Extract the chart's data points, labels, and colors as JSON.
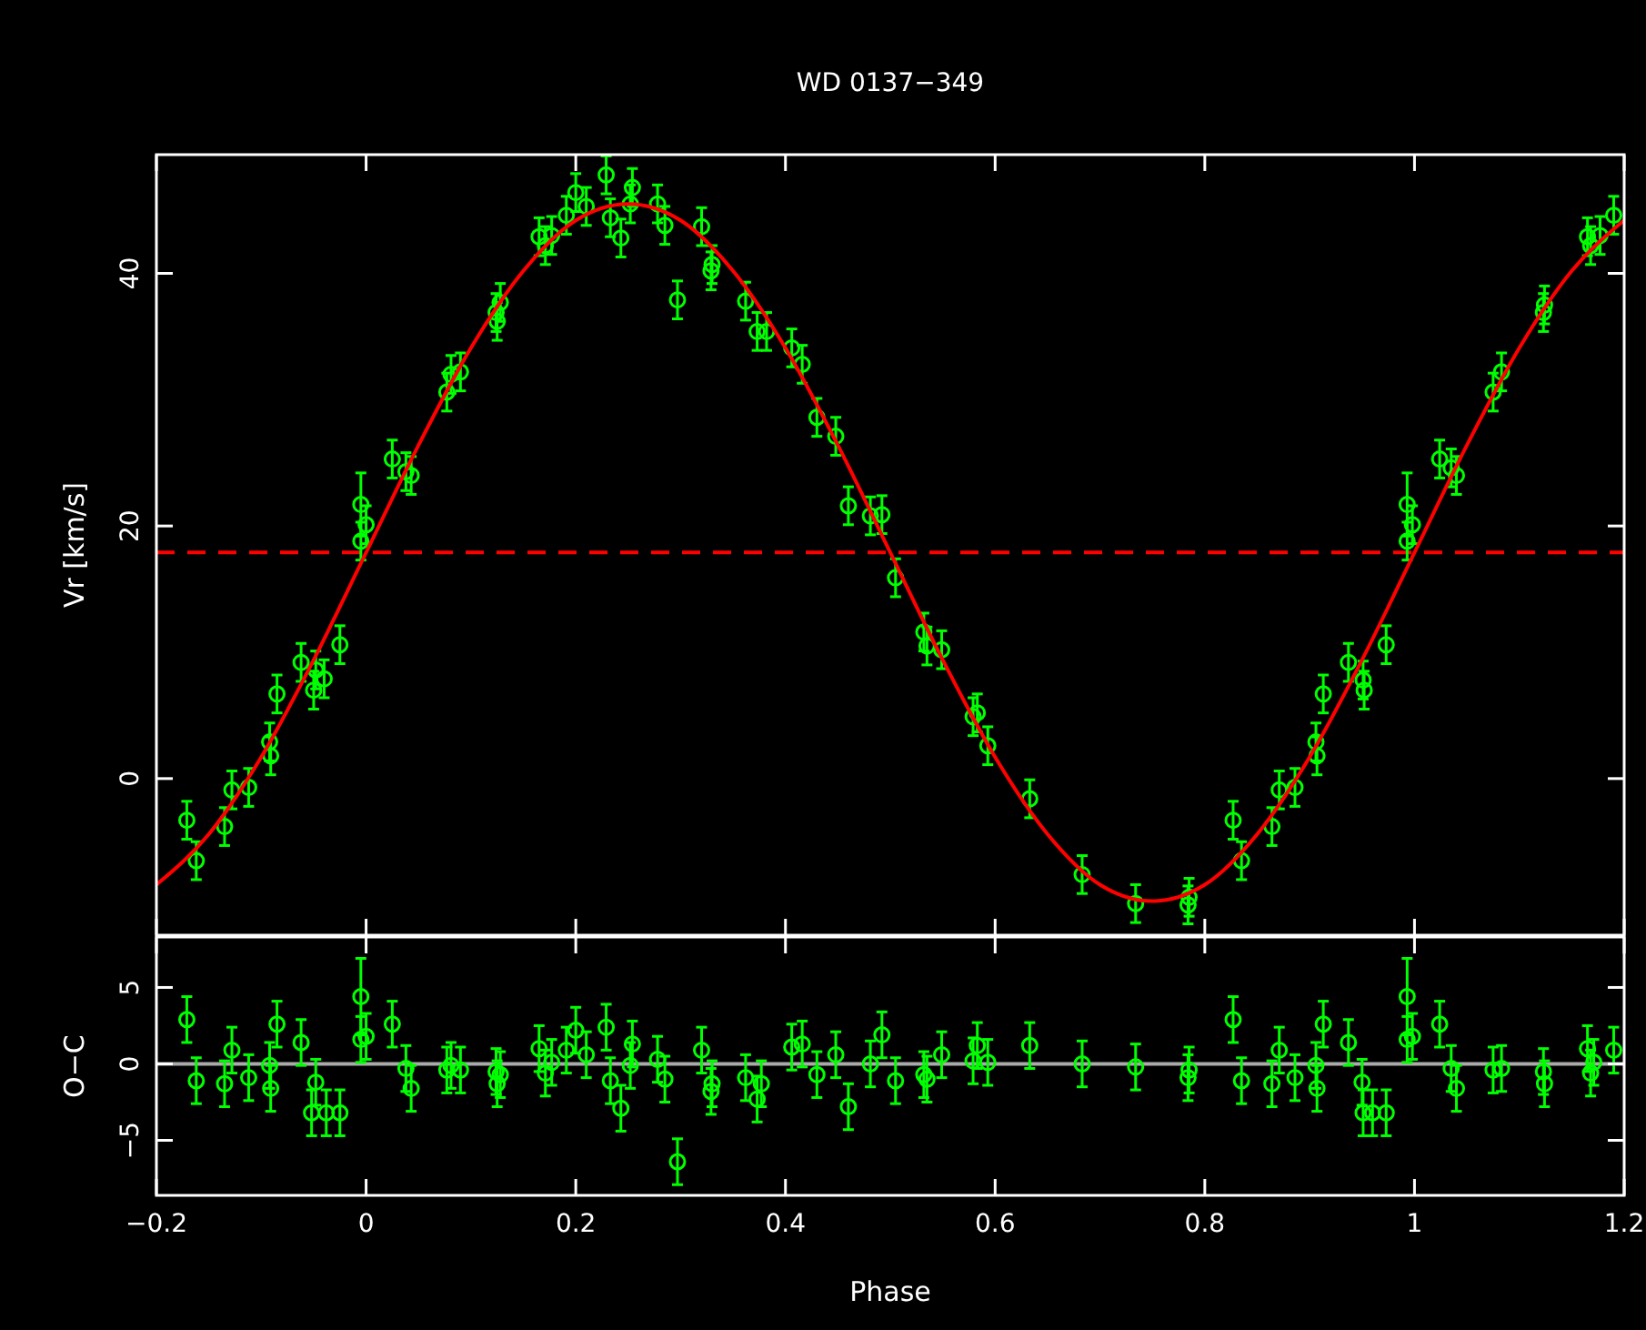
{
  "chart_data": [
    {
      "type": "scatter",
      "title": "WD 0137−349",
      "ylabel": "Vr [km/s]",
      "xlim": [
        -0.2,
        1.2
      ],
      "xticks": [
        -0.2,
        0,
        0.2,
        0.4,
        0.6,
        0.8,
        1,
        1.2
      ],
      "ylim": [
        -12.4,
        49.4
      ],
      "yticks": [
        0,
        20,
        40
      ],
      "tick_labels": "y",
      "marker": "circle",
      "grid": false,
      "ref_lines": [
        {
          "axis": "y",
          "value": 17.9,
          "color": "#ff0000",
          "line_style": "dashed"
        }
      ],
      "series": [
        {
          "type": "scatter",
          "color": "#00ff00",
          "x": [
            -0.171,
            -0.162,
            -0.135,
            -0.128,
            -0.112,
            -0.092,
            -0.091,
            -0.085,
            -0.062,
            -0.048,
            -0.05,
            -0.04,
            -0.025,
            -0.005,
            -0.005,
            0.0,
            0.025,
            0.038,
            0.043,
            0.077,
            0.081,
            0.09,
            0.124,
            0.128,
            0.125,
            0.165,
            0.171,
            0.177,
            0.191,
            0.2,
            0.21,
            0.229,
            0.233,
            0.243,
            0.252,
            0.254,
            0.278,
            0.285,
            0.297,
            0.32,
            0.329,
            0.33,
            0.362,
            0.373,
            0.382,
            0.406,
            0.416,
            0.43,
            0.448,
            0.46,
            0.481,
            0.492,
            0.505,
            0.532,
            0.535,
            0.549,
            0.579,
            0.583,
            0.593,
            0.633,
            0.683,
            0.734,
            0.785,
            0.784,
            0.827,
            0.835,
            0.864,
            0.871,
            0.886,
            0.906,
            0.907,
            0.913,
            0.937,
            0.951,
            0.952,
            0.973,
            0.993,
            0.993,
            0.998,
            1.024,
            1.035,
            1.04,
            1.075,
            1.083,
            1.123,
            1.124,
            1.165,
            1.168,
            1.177,
            1.19
          ],
          "values": [
            -3.3,
            -6.5,
            -3.8,
            -0.9,
            -0.7,
            2.9,
            1.8,
            6.7,
            9.2,
            8.6,
            7.0,
            7.9,
            10.6,
            18.8,
            21.7,
            20.1,
            25.3,
            24.3,
            24.0,
            30.6,
            32.0,
            32.2,
            36.9,
            37.7,
            36.2,
            42.9,
            42.2,
            43.0,
            44.6,
            46.4,
            45.3,
            47.8,
            44.4,
            42.8,
            45.5,
            46.8,
            45.5,
            43.8,
            37.9,
            43.7,
            40.2,
            40.7,
            37.8,
            35.4,
            35.4,
            34.1,
            32.8,
            28.6,
            27.1,
            21.6,
            20.8,
            20.9,
            15.9,
            11.6,
            10.5,
            10.2,
            4.9,
            5.2,
            2.6,
            -1.6,
            -7.6,
            -9.9,
            -9.4,
            -10.0,
            -3.3,
            -6.5,
            -3.8,
            -0.9,
            -0.7,
            2.9,
            1.8,
            6.7,
            9.2,
            7.8,
            7.0,
            10.6,
            18.8,
            21.7,
            20.1,
            25.3,
            24.6,
            24.0,
            30.6,
            32.2,
            36.9,
            37.5,
            42.9,
            42.2,
            43.0,
            44.6
          ],
          "errors": [
            1.5,
            1.5,
            1.5,
            1.5,
            1.5,
            1.5,
            1.5,
            1.5,
            1.5,
            1.5,
            1.5,
            1.5,
            1.5,
            1.5,
            2.5,
            1.5,
            1.5,
            1.5,
            1.5,
            1.5,
            1.5,
            1.5,
            1.5,
            1.5,
            1.5,
            1.5,
            1.5,
            1.5,
            1.5,
            1.5,
            1.5,
            1.5,
            1.5,
            1.5,
            1.5,
            1.5,
            1.5,
            1.5,
            1.5,
            1.5,
            1.5,
            1.5,
            1.5,
            1.5,
            1.5,
            1.5,
            1.5,
            1.5,
            1.5,
            1.5,
            1.5,
            1.5,
            1.5,
            1.5,
            1.5,
            1.5,
            1.5,
            1.5,
            1.5,
            1.5,
            1.5,
            1.5,
            1.5,
            1.5,
            1.5,
            1.5,
            1.5,
            1.5,
            1.5,
            1.5,
            1.5,
            1.5,
            1.5,
            1.5,
            1.5,
            1.5,
            1.5,
            2.5,
            1.5,
            1.5,
            1.5,
            1.5,
            1.5,
            1.5,
            1.5,
            1.5,
            1.5,
            1.5,
            1.5,
            1.5
          ]
        },
        {
          "type": "line",
          "color": "#ff0000",
          "marker": "none",
          "x": [
            -0.2,
            -0.15,
            -0.1,
            -0.05,
            0,
            0.05,
            0.1,
            0.15,
            0.2,
            0.25,
            0.3,
            0.35,
            0.4,
            0.45,
            0.5,
            0.55,
            0.6,
            0.65,
            0.7,
            0.75,
            0.8,
            0.85,
            0.9,
            0.95,
            1.0,
            1.05,
            1.1,
            1.15,
            1.2
          ],
          "values": [
            -8.4,
            -4.4,
            1.7,
            9.4,
            17.9,
            26.4,
            34.1,
            40.2,
            44.2,
            45.5,
            44.2,
            40.2,
            34.1,
            26.4,
            17.9,
            9.4,
            1.7,
            -4.4,
            -8.4,
            -9.7,
            -8.4,
            -4.4,
            1.7,
            9.4,
            17.9,
            26.4,
            34.1,
            40.2,
            44.2
          ]
        }
      ]
    },
    {
      "type": "scatter",
      "xlabel": "Phase",
      "ylabel": "O−C",
      "xlim": [
        -0.2,
        1.2
      ],
      "xticks": [
        {
          "value": -0.2,
          "label": "−0.2"
        },
        0,
        0.2,
        0.4,
        0.6,
        0.8,
        1,
        1.2
      ],
      "ylim": [
        -8.6,
        8.3
      ],
      "yticks": [
        {
          "value": -5,
          "label": "−5"
        },
        0,
        5
      ],
      "marker": "circle",
      "grid": false,
      "ref_lines": [
        {
          "axis": "y",
          "value": 0,
          "color": "#aaaaaa",
          "line_style": "solid"
        }
      ],
      "series": [
        {
          "type": "scatter",
          "color": "#00ff00",
          "x": [
            -0.171,
            -0.162,
            -0.135,
            -0.128,
            -0.112,
            -0.092,
            -0.091,
            -0.085,
            -0.062,
            -0.048,
            -0.052,
            -0.038,
            -0.025,
            -0.005,
            -0.005,
            0.0,
            0.025,
            0.038,
            0.043,
            0.077,
            0.081,
            0.09,
            0.124,
            0.128,
            0.125,
            0.165,
            0.171,
            0.177,
            0.191,
            0.2,
            0.21,
            0.229,
            0.233,
            0.243,
            0.252,
            0.254,
            0.278,
            0.285,
            0.297,
            0.32,
            0.329,
            0.33,
            0.362,
            0.373,
            0.377,
            0.406,
            0.416,
            0.43,
            0.448,
            0.46,
            0.481,
            0.492,
            0.505,
            0.532,
            0.535,
            0.549,
            0.579,
            0.583,
            0.593,
            0.633,
            0.683,
            0.734,
            0.785,
            0.784,
            0.827,
            0.835,
            0.864,
            0.871,
            0.886,
            0.906,
            0.907,
            0.913,
            0.937,
            0.95,
            0.951,
            0.96,
            0.973,
            0.993,
            0.993,
            0.998,
            1.024,
            1.035,
            1.04,
            1.075,
            1.083,
            1.123,
            1.124,
            1.165,
            1.168,
            1.171,
            1.19
          ],
          "values": [
            2.9,
            -1.1,
            -1.3,
            0.9,
            -0.9,
            -0.1,
            -1.6,
            2.6,
            1.4,
            -1.2,
            -3.2,
            -3.2,
            -3.2,
            4.4,
            1.6,
            1.8,
            2.6,
            -0.3,
            -1.6,
            -0.4,
            -0.1,
            -0.4,
            -0.5,
            -0.7,
            -1.3,
            1.0,
            -0.6,
            0.1,
            0.9,
            2.2,
            0.6,
            2.4,
            -1.1,
            -2.9,
            -0.1,
            1.3,
            0.3,
            -1.0,
            -6.4,
            0.9,
            -1.8,
            -1.3,
            -0.9,
            -2.3,
            -1.3,
            1.1,
            1.3,
            -0.7,
            0.6,
            -2.8,
            0.0,
            1.9,
            -1.1,
            -0.7,
            -1.0,
            0.6,
            0.2,
            1.2,
            0.1,
            1.2,
            0.0,
            -0.2,
            -0.4,
            -0.9,
            2.9,
            -1.1,
            -1.3,
            0.9,
            -0.9,
            -0.1,
            -1.6,
            2.6,
            1.4,
            -1.2,
            -3.2,
            -3.2,
            -3.2,
            4.4,
            1.6,
            1.8,
            2.6,
            -0.3,
            -1.6,
            -0.4,
            -0.3,
            -0.5,
            -1.3,
            1.0,
            -0.6,
            0.1,
            0.9
          ],
          "errors": [
            1.5,
            1.5,
            1.5,
            1.5,
            1.5,
            1.5,
            1.5,
            1.5,
            1.5,
            1.5,
            1.5,
            1.5,
            1.5,
            2.5,
            1.5,
            1.5,
            1.5,
            1.5,
            1.5,
            1.5,
            1.5,
            1.5,
            1.5,
            1.5,
            1.5,
            1.5,
            1.5,
            1.5,
            1.5,
            1.5,
            1.5,
            1.5,
            1.5,
            1.5,
            1.5,
            1.5,
            1.5,
            1.5,
            1.5,
            1.5,
            1.5,
            1.5,
            1.5,
            1.5,
            1.5,
            1.5,
            1.5,
            1.5,
            1.5,
            1.5,
            1.5,
            1.5,
            1.5,
            1.5,
            1.5,
            1.5,
            1.5,
            1.5,
            1.5,
            1.5,
            1.5,
            1.5,
            1.5,
            1.5,
            1.5,
            1.5,
            1.5,
            1.5,
            1.5,
            1.5,
            1.5,
            1.5,
            1.5,
            1.5,
            1.5,
            1.5,
            1.5,
            2.5,
            1.5,
            1.5,
            1.5,
            1.5,
            1.5,
            1.5,
            1.5,
            1.5,
            1.5,
            1.5,
            1.5,
            1.5,
            1.5
          ]
        }
      ]
    }
  ]
}
